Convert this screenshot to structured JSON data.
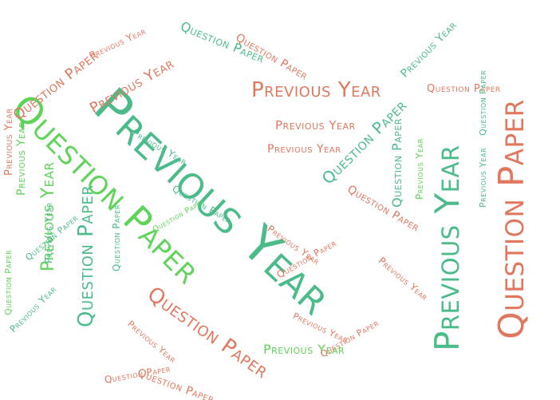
{
  "colors": {
    "teal": "#4cbb8a",
    "green": "#5fd35a",
    "coral": "#e07860"
  },
  "words": [
    "Previous Year",
    "Question Paper",
    "Previous Year",
    "Previous Year",
    "Question Paper",
    "Question Paper",
    "Previous Year",
    "Question Paper",
    "Previous Year",
    "Question Paper",
    "Previous Year",
    "Question Paper",
    "Previous Year",
    "Question Paper",
    "Previous Year",
    "Question Paper",
    "Previous Year",
    "Question Paper",
    "Previous Year",
    "Question Paper",
    "Previous Year",
    "Question Paper",
    "Previous Year",
    "Question Paper",
    "Previous Year",
    "Question Paper",
    "Previous Year",
    "Question Paper",
    "Previous Year",
    "Question Paper",
    "Previous Year",
    "Question Paper",
    "Previous Year",
    "Question Paper",
    "Previous Year",
    "Question Paper",
    "Previous Year",
    "Question Paper",
    "Previous Year",
    "Question Paper",
    "Previous Year",
    "Question Paper"
  ]
}
